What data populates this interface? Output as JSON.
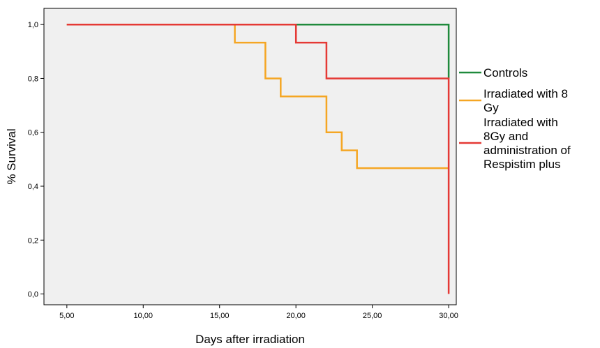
{
  "chart_data": {
    "type": "line",
    "step": true,
    "title": "",
    "xlabel": "Days after irradiation",
    "ylabel": "% Survival",
    "xlim": [
      3.5,
      30.5
    ],
    "ylim": [
      -0.04,
      1.06
    ],
    "x_ticks": [
      5,
      10,
      15,
      20,
      25,
      30
    ],
    "x_tick_labels": [
      "5,00",
      "10,00",
      "15,00",
      "20,00",
      "25,00",
      "30,00"
    ],
    "y_ticks": [
      0,
      0.2,
      0.4,
      0.6,
      0.8,
      1.0
    ],
    "y_tick_labels": [
      "0,0",
      "0,2",
      "0,4",
      "0,6",
      "0,8",
      "1,0"
    ],
    "grid": false,
    "background_color": "#f0f0f0",
    "legend_position": "right",
    "series": [
      {
        "name": "Controls",
        "color": "#1f8a3c",
        "x": [
          5,
          30,
          30
        ],
        "y": [
          1.0,
          1.0,
          0.8
        ]
      },
      {
        "name": "Irradiated with 8 Gy",
        "color": "#f5a623",
        "x": [
          5,
          16,
          16,
          18,
          18,
          19,
          19,
          22,
          22,
          23,
          23,
          24,
          24,
          30
        ],
        "y": [
          1.0,
          1.0,
          0.933,
          0.933,
          0.8,
          0.8,
          0.733,
          0.733,
          0.6,
          0.6,
          0.533,
          0.533,
          0.467,
          0.467
        ]
      },
      {
        "name": "Irradiated with 8Gy and administration of Respistim plus",
        "color": "#e53935",
        "x": [
          5,
          20,
          20,
          22,
          22,
          30,
          30
        ],
        "y": [
          1.0,
          1.0,
          0.933,
          0.933,
          0.8,
          0.8,
          0.0
        ]
      }
    ],
    "legend_lines": [
      [
        "Controls"
      ],
      [
        "Irradiated with 8",
        "Gy"
      ],
      [
        "Irradiated with",
        "8Gy and",
        "administration of",
        "Respistim plus"
      ]
    ]
  }
}
